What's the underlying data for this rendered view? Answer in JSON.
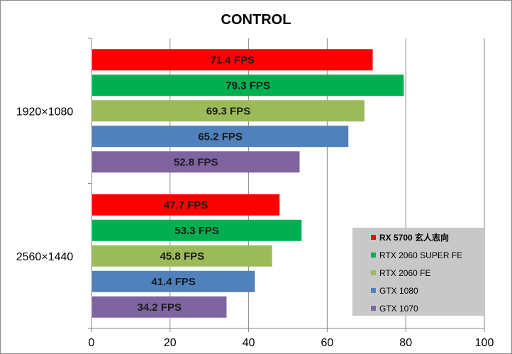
{
  "chart_data": {
    "type": "bar",
    "orientation": "horizontal",
    "title": "CONTROL",
    "categories": [
      "1920×1080",
      "2560×1440"
    ],
    "series": [
      {
        "name": "RX 5700 玄人志向",
        "color": "#ff0000",
        "values": [
          71.4,
          47.7
        ],
        "labels": [
          "71.4 FPS",
          "47.7 FPS"
        ]
      },
      {
        "name": "RTX 2060 SUPER FE",
        "color": "#00b050",
        "values": [
          79.3,
          53.3
        ],
        "labels": [
          "79.3 FPS",
          "53.3 FPS"
        ]
      },
      {
        "name": "RTX 2060 FE",
        "color": "#9bbb59",
        "values": [
          69.3,
          45.8
        ],
        "labels": [
          "69.3 FPS",
          "45.8 FPS"
        ]
      },
      {
        "name": "GTX 1080",
        "color": "#4f81bd",
        "values": [
          65.2,
          41.4
        ],
        "labels": [
          "65.2 FPS",
          "41.4 FPS"
        ]
      },
      {
        "name": "GTX 1070",
        "color": "#8064a2",
        "values": [
          52.8,
          34.2
        ],
        "labels": [
          "52.8 FPS",
          "34.2 FPS"
        ]
      }
    ],
    "xlim": [
      0,
      100
    ],
    "xticks": [
      "0",
      "20",
      "40",
      "60",
      "80",
      "100"
    ],
    "grid": "vertical",
    "legend_position": "bottom-right",
    "legend_background": "#c8c8c8"
  }
}
